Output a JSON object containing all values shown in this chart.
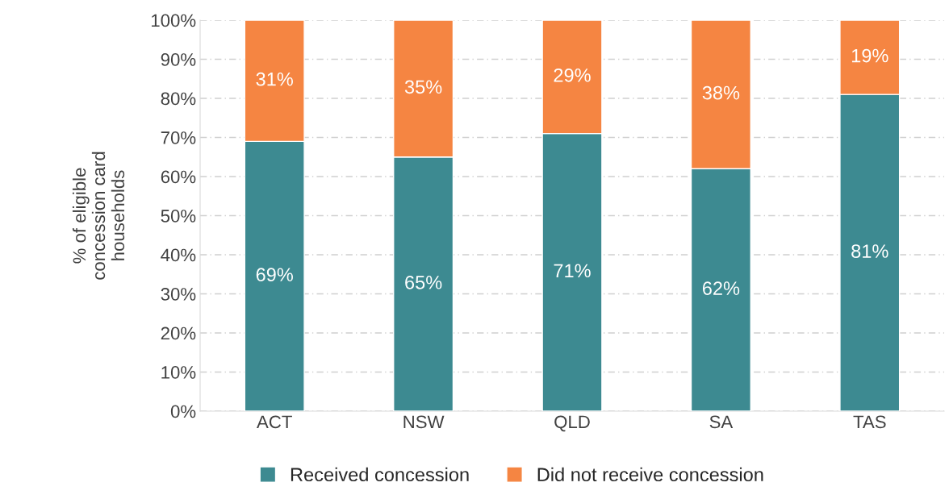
{
  "chart_data": {
    "type": "bar",
    "stacked": true,
    "ylabel": "% of eligible\nconcession card\nhouseholds",
    "categories": [
      "ACT",
      "NSW",
      "QLD",
      "SA",
      "TAS"
    ],
    "series": [
      {
        "name": "Received concession",
        "color": "#3d8a91",
        "values": [
          69,
          65,
          71,
          62,
          81
        ],
        "value_labels": [
          "69%",
          "65%",
          "71%",
          "62%",
          "81%"
        ]
      },
      {
        "name": "Did not receive concession",
        "color": "#f58542",
        "values": [
          31,
          35,
          29,
          38,
          19
        ],
        "value_labels": [
          "31%",
          "35%",
          "29%",
          "38%",
          "19%"
        ]
      }
    ],
    "ylim": [
      0,
      100
    ],
    "yticks": [
      {
        "value": 0,
        "label": "0%"
      },
      {
        "value": 10,
        "label": "10%"
      },
      {
        "value": 20,
        "label": "20%"
      },
      {
        "value": 30,
        "label": "30%"
      },
      {
        "value": 40,
        "label": "40%"
      },
      {
        "value": 50,
        "label": "50%"
      },
      {
        "value": 60,
        "label": "60%"
      },
      {
        "value": 70,
        "label": "70%"
      },
      {
        "value": 80,
        "label": "80%"
      },
      {
        "value": 90,
        "label": "90%"
      },
      {
        "value": 100,
        "label": "100%"
      }
    ],
    "grid": "y",
    "legend": "bottom"
  }
}
